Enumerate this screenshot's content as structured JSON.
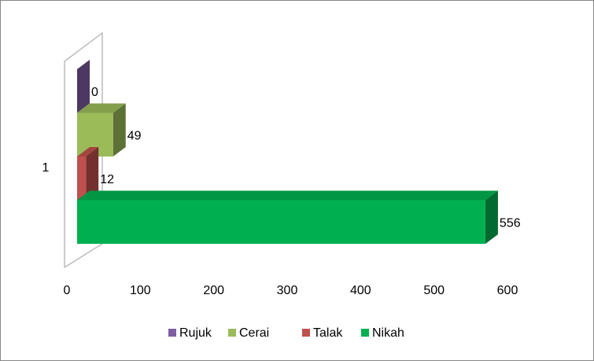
{
  "chart_data": {
    "type": "bar3d_horizontal",
    "categories": [
      "1"
    ],
    "series": [
      {
        "name": "Rujuk",
        "color": "#7e5ea3",
        "values": [
          0
        ]
      },
      {
        "name": "Cerai",
        "color": "#9bbb59",
        "values": [
          49
        ]
      },
      {
        "name": "Talak",
        "color": "#c0504d",
        "values": [
          12
        ]
      },
      {
        "name": "Nikah",
        "color": "#00b050",
        "values": [
          556
        ]
      }
    ],
    "xlim": [
      0,
      600
    ],
    "xticks": [
      0,
      100,
      200,
      300,
      400,
      500,
      600
    ],
    "legend": "bottom"
  }
}
